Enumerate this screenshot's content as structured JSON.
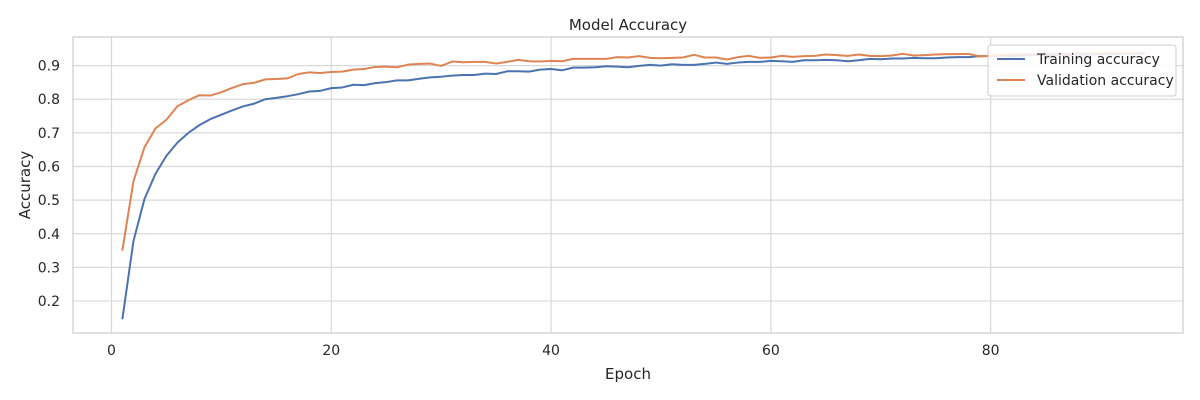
{
  "chart_data": {
    "type": "line",
    "title": "Model Accuracy",
    "xlabel": "Epoch",
    "ylabel": "Accuracy",
    "xlim": [
      -3.5,
      97.5
    ],
    "ylim": [
      0.105,
      0.985
    ],
    "xticks": [
      0,
      20,
      40,
      60,
      80
    ],
    "yticks": [
      0.2,
      0.3,
      0.4,
      0.5,
      0.6,
      0.7,
      0.8,
      0.9
    ],
    "grid": true,
    "legend_position": "top-right",
    "x": [
      1,
      2,
      3,
      4,
      5,
      6,
      7,
      8,
      9,
      10,
      11,
      12,
      13,
      14,
      15,
      16,
      17,
      18,
      19,
      20,
      21,
      22,
      23,
      24,
      25,
      26,
      27,
      28,
      29,
      30,
      31,
      32,
      33,
      34,
      35,
      36,
      37,
      38,
      39,
      40,
      41,
      42,
      43,
      44,
      45,
      46,
      47,
      48,
      49,
      50,
      51,
      52,
      53,
      54,
      55,
      56,
      57,
      58,
      59,
      60,
      61,
      62,
      63,
      64,
      65,
      66,
      67,
      68,
      69,
      70,
      71,
      72,
      73,
      74,
      75,
      76,
      77,
      78,
      79,
      80,
      81,
      82,
      83,
      84,
      85,
      86,
      87,
      88,
      89,
      90,
      91,
      92,
      93,
      94
    ],
    "series": [
      {
        "name": "Training accuracy",
        "color": "#4c72b0",
        "values": [
          0.148,
          0.378,
          0.503,
          0.578,
          0.632,
          0.671,
          0.7,
          0.723,
          0.741,
          0.754,
          0.767,
          0.779,
          0.787,
          0.8,
          0.804,
          0.809,
          0.815,
          0.823,
          0.825,
          0.833,
          0.835,
          0.843,
          0.842,
          0.848,
          0.851,
          0.856,
          0.856,
          0.861,
          0.865,
          0.867,
          0.87,
          0.872,
          0.872,
          0.876,
          0.875,
          0.883,
          0.883,
          0.882,
          0.888,
          0.89,
          0.886,
          0.894,
          0.894,
          0.895,
          0.898,
          0.897,
          0.895,
          0.899,
          0.902,
          0.9,
          0.904,
          0.902,
          0.902,
          0.905,
          0.909,
          0.905,
          0.909,
          0.911,
          0.911,
          0.914,
          0.913,
          0.911,
          0.916,
          0.916,
          0.917,
          0.916,
          0.913,
          0.916,
          0.92,
          0.919,
          0.921,
          0.921,
          0.923,
          0.922,
          0.922,
          0.924,
          0.925,
          0.925,
          0.928,
          0.928,
          0.93,
          0.929,
          0.93,
          0.931,
          0.931,
          0.932,
          0.932,
          0.933,
          0.933,
          0.934,
          0.934,
          0.935,
          0.935,
          0.936
        ]
      },
      {
        "name": "Validation accuracy",
        "color": "#dd8452",
        "values": [
          0.352,
          0.556,
          0.657,
          0.713,
          0.739,
          0.779,
          0.797,
          0.812,
          0.811,
          0.821,
          0.834,
          0.845,
          0.849,
          0.859,
          0.86,
          0.862,
          0.875,
          0.88,
          0.878,
          0.881,
          0.882,
          0.888,
          0.89,
          0.896,
          0.897,
          0.895,
          0.903,
          0.905,
          0.906,
          0.899,
          0.912,
          0.91,
          0.911,
          0.911,
          0.906,
          0.911,
          0.917,
          0.913,
          0.912,
          0.914,
          0.913,
          0.92,
          0.92,
          0.92,
          0.92,
          0.925,
          0.924,
          0.928,
          0.923,
          0.922,
          0.923,
          0.924,
          0.932,
          0.924,
          0.924,
          0.918,
          0.925,
          0.929,
          0.923,
          0.924,
          0.929,
          0.926,
          0.928,
          0.929,
          0.933,
          0.931,
          0.929,
          0.933,
          0.929,
          0.928,
          0.93,
          0.935,
          0.93,
          0.931,
          0.933,
          0.934,
          0.934,
          0.935,
          0.927,
          0.93,
          0.932,
          0.933,
          0.934,
          0.934,
          0.935,
          0.935,
          0.935,
          0.936,
          0.936,
          0.936,
          0.937,
          0.937,
          0.937,
          0.938
        ]
      }
    ]
  }
}
